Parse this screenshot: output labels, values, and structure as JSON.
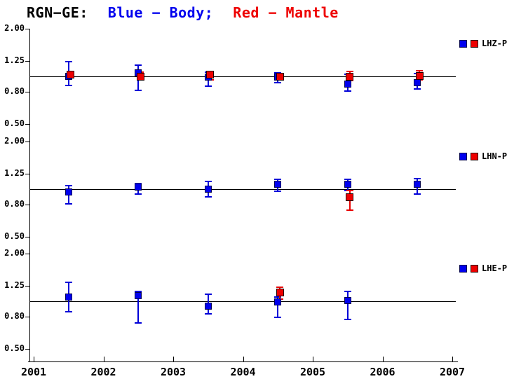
{
  "chart_data": {
    "type": "scatter",
    "title": {
      "prefix": "RGN−GE:",
      "body_segment": "Blue − Body;",
      "mantle_segment": "Red − Mantle"
    },
    "colors": {
      "body": "#0000ee",
      "mantle": "#ee0000",
      "axis": "#000000",
      "background": "#ffffff"
    },
    "y_scale": "log",
    "reference_value": 1.0,
    "y_axis": {
      "range": [
        0.5,
        2.0
      ],
      "ticks": [
        {
          "label": "2.00",
          "value": 2.0
        },
        {
          "label": "1.25",
          "value": 1.25
        },
        {
          "label": "0.80",
          "value": 0.8
        },
        {
          "label": "0.50",
          "value": 0.5
        }
      ]
    },
    "x_axis": {
      "range": [
        2001,
        2007
      ],
      "ticks": [
        "2001",
        "2002",
        "2003",
        "2004",
        "2005",
        "2006",
        "2007"
      ]
    },
    "legend_series": [
      "body",
      "mantle"
    ],
    "subplots": [
      {
        "label": "LHZ-P",
        "points": [
          {
            "year": 2001.5,
            "body": {
              "v": 1.0,
              "err": [
                0.88,
                1.24
              ]
            },
            "mantle": {
              "v": 1.03,
              "err": null
            }
          },
          {
            "year": 2002.5,
            "body": {
              "v": 1.05,
              "err": [
                0.82,
                1.18
              ]
            },
            "mantle": {
              "v": 0.99,
              "err": [
                0.97,
                1.06
              ]
            }
          },
          {
            "year": 2003.5,
            "body": {
              "v": 0.99,
              "err": [
                0.87,
                1.06
              ]
            },
            "mantle": {
              "v": 1.03,
              "err": [
                0.95,
                1.06
              ]
            }
          },
          {
            "year": 2004.5,
            "body": {
              "v": 0.99,
              "err": [
                0.91,
                1.05
              ]
            },
            "mantle": {
              "v": 1.0,
              "err": null
            }
          },
          {
            "year": 2005.5,
            "body": {
              "v": 0.89,
              "err": [
                0.81,
                1.03
              ]
            },
            "mantle": {
              "v": 1.0,
              "err": [
                0.94,
                1.07
              ]
            }
          },
          {
            "year": 2006.5,
            "body": {
              "v": 0.91,
              "err": [
                0.83,
                1.04
              ]
            },
            "mantle": {
              "v": 1.01,
              "err": [
                0.95,
                1.08
              ]
            }
          }
        ]
      },
      {
        "label": "LHN-P",
        "points": [
          {
            "year": 2001.5,
            "body": {
              "v": 0.96,
              "err": [
                0.81,
                1.05
              ]
            },
            "mantle": null
          },
          {
            "year": 2002.5,
            "body": {
              "v": 1.03,
              "err": [
                0.93,
                1.08
              ]
            },
            "mantle": null
          },
          {
            "year": 2003.5,
            "body": {
              "v": 1.0,
              "err": [
                0.89,
                1.12
              ]
            },
            "mantle": null
          },
          {
            "year": 2004.5,
            "body": {
              "v": 1.07,
              "err": [
                0.97,
                1.15
              ]
            },
            "mantle": null
          },
          {
            "year": 2005.5,
            "body": {
              "v": 1.07,
              "err": [
                0.98,
                1.15
              ]
            },
            "mantle": {
              "v": 0.89,
              "err": [
                0.74,
                0.98
              ]
            }
          },
          {
            "year": 2006.5,
            "body": {
              "v": 1.07,
              "err": [
                0.93,
                1.17
              ]
            },
            "mantle": null
          }
        ]
      },
      {
        "label": "LHE-P",
        "points": [
          {
            "year": 2001.5,
            "body": {
              "v": 1.06,
              "err": [
                0.86,
                1.31
              ]
            },
            "mantle": null
          },
          {
            "year": 2002.5,
            "body": {
              "v": 1.08,
              "err": [
                0.73,
                1.15
              ]
            },
            "mantle": null
          },
          {
            "year": 2003.5,
            "body": {
              "v": 0.93,
              "err": [
                0.83,
                1.11
              ]
            },
            "mantle": null
          },
          {
            "year": 2004.5,
            "body": {
              "v": 0.99,
              "err": [
                0.79,
                1.06
              ]
            },
            "mantle": {
              "v": 1.14,
              "err": [
                1.03,
                1.22
              ]
            }
          },
          {
            "year": 2005.5,
            "body": {
              "v": 1.01,
              "err": [
                0.77,
                1.15
              ]
            },
            "mantle": null
          }
        ]
      }
    ]
  }
}
